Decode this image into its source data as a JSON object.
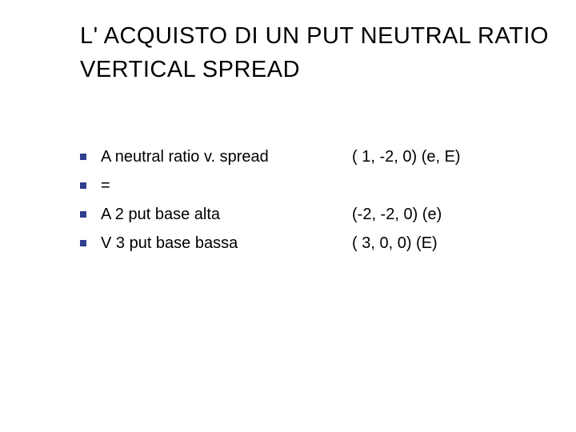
{
  "type": "slide",
  "background_color": "#ffffff",
  "text_color": "#000000",
  "bullet_color": "#2f3e8f",
  "title_fontsize": 29,
  "body_fontsize": 20,
  "title": "L' ACQUISTO DI UN PUT NEUTRAL RATIO VERTICAL SPREAD",
  "rows": [
    {
      "label": "A neutral ratio v. spread",
      "value": "( 1, -2, 0) (e, E)"
    },
    {
      "label": "=",
      "value": ""
    },
    {
      "label": "A 2 put base alta",
      "value": "(-2, -2, 0) (e)"
    },
    {
      "label": "V 3 put base bassa",
      "value": "( 3, 0, 0) (E)"
    }
  ]
}
